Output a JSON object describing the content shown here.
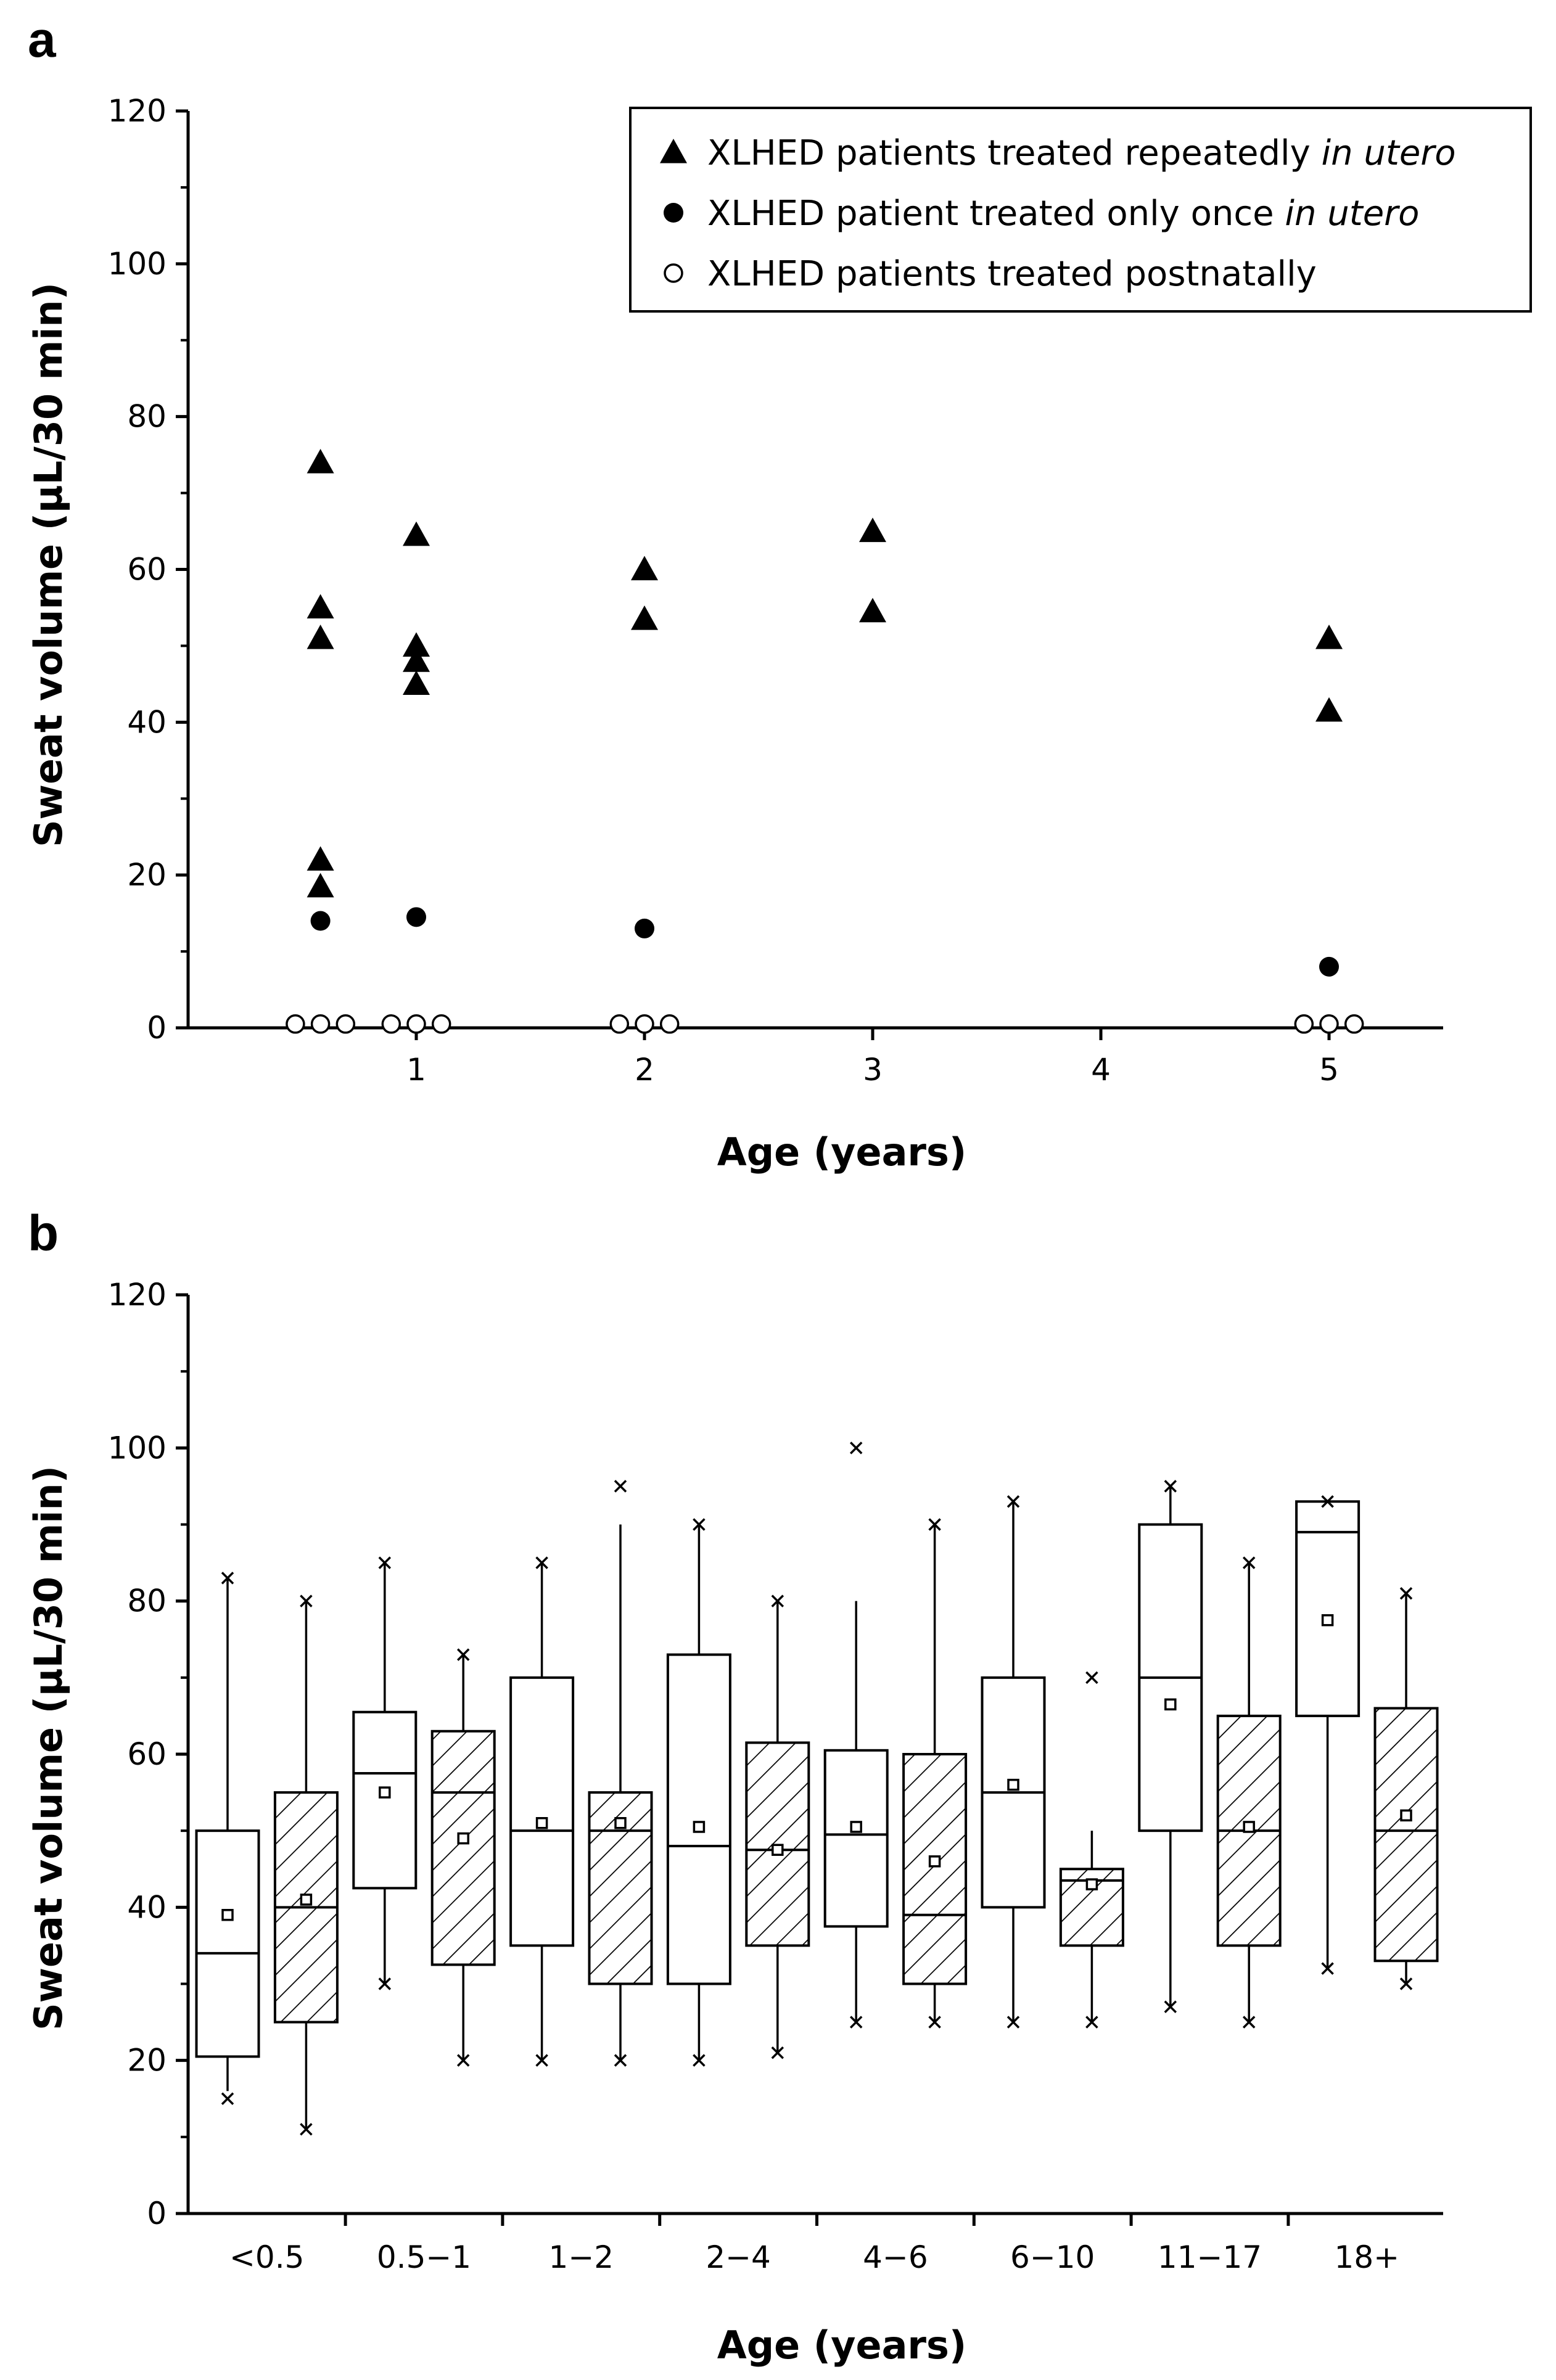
{
  "chart_data": [
    {
      "panel": "a",
      "type": "scatter",
      "xlabel": "Age (years)",
      "ylabel": "Sweat volume (µL/30 min)",
      "xlim": [
        0,
        5.5
      ],
      "ylim": [
        0,
        120
      ],
      "x_ticks": [
        "1",
        "2",
        "3",
        "4",
        "5"
      ],
      "y_ticks": [
        "0",
        "20",
        "40",
        "60",
        "80",
        "100",
        "120"
      ],
      "legend": {
        "position": "top-right",
        "entries": [
          {
            "marker": "triangle",
            "text": "XLHED patients treated repeatedly ",
            "italic": "in utero"
          },
          {
            "marker": "filled-circle",
            "text": "XLHED patient treated only once ",
            "italic": "in utero"
          },
          {
            "marker": "open-circle",
            "text": "XLHED patients treated postnatally",
            "italic": ""
          }
        ]
      },
      "series": [
        {
          "marker": "triangle",
          "points": [
            [
              0.58,
              74
            ],
            [
              0.58,
              55
            ],
            [
              0.58,
              51
            ],
            [
              0.58,
              22
            ],
            [
              0.58,
              18.5
            ],
            [
              1.0,
              64.5
            ],
            [
              1.0,
              50
            ],
            [
              1.0,
              48
            ],
            [
              1.0,
              45
            ],
            [
              2.0,
              60
            ],
            [
              2.0,
              53.5
            ],
            [
              3.0,
              65
            ],
            [
              3.0,
              54.5
            ],
            [
              5.0,
              51
            ],
            [
              5.0,
              41.5
            ]
          ]
        },
        {
          "marker": "filled-circle",
          "points": [
            [
              0.58,
              14
            ],
            [
              1.0,
              14.5
            ],
            [
              2.0,
              13
            ],
            [
              5.0,
              8
            ]
          ]
        },
        {
          "marker": "open-circle",
          "points": [
            [
              0.47,
              0.5
            ],
            [
              0.58,
              0.5
            ],
            [
              0.69,
              0.5
            ],
            [
              0.89,
              0.5
            ],
            [
              1.0,
              0.5
            ],
            [
              1.11,
              0.5
            ],
            [
              1.89,
              0.5
            ],
            [
              2.0,
              0.5
            ],
            [
              2.11,
              0.5
            ],
            [
              4.89,
              0.5
            ],
            [
              5.0,
              0.5
            ],
            [
              5.11,
              0.5
            ]
          ]
        }
      ]
    },
    {
      "panel": "b",
      "type": "box",
      "xlabel": "Age (years)",
      "ylabel": "Sweat volume (µL/30 min)",
      "ylim": [
        0,
        120
      ],
      "categories": [
        "<0.5",
        "0.5−1",
        "1−2",
        "2−4",
        "4−6",
        "6−10",
        "11−17",
        "18+"
      ],
      "y_ticks": [
        "0",
        "20",
        "40",
        "60",
        "80",
        "100",
        "120"
      ],
      "boxes": [
        {
          "category": "<0.5",
          "hatched": false,
          "q1": 20.5,
          "median": 34,
          "q3": 50,
          "whisker_low": 16,
          "whisker_high": 83,
          "mean": 39,
          "min": 15,
          "max": 83
        },
        {
          "category": "<0.5",
          "hatched": true,
          "q1": 25,
          "median": 40,
          "q3": 55,
          "whisker_low": 11,
          "whisker_high": 80,
          "mean": 41,
          "min": 11,
          "max": 80
        },
        {
          "category": "0.5−1",
          "hatched": false,
          "q1": 42.5,
          "median": 57.5,
          "q3": 65.5,
          "whisker_low": 30,
          "whisker_high": 85,
          "mean": 55,
          "min": 30,
          "max": 85
        },
        {
          "category": "0.5−1",
          "hatched": true,
          "q1": 32.5,
          "median": 55,
          "q3": 63,
          "whisker_low": 20,
          "whisker_high": 73,
          "mean": 49,
          "min": 20,
          "max": 73
        },
        {
          "category": "1−2",
          "hatched": false,
          "q1": 35,
          "median": 50,
          "q3": 70,
          "whisker_low": 20,
          "whisker_high": 85,
          "mean": 51,
          "min": 20,
          "max": 85
        },
        {
          "category": "1−2",
          "hatched": true,
          "q1": 30,
          "median": 50,
          "q3": 55,
          "whisker_low": 20,
          "whisker_high": 90,
          "mean": 51,
          "min": 20,
          "max": 95
        },
        {
          "category": "2−4",
          "hatched": false,
          "q1": 30,
          "median": 48,
          "q3": 73,
          "whisker_low": 20,
          "whisker_high": 90,
          "mean": 50.5,
          "min": 20,
          "max": 90
        },
        {
          "category": "2−4",
          "hatched": true,
          "q1": 35,
          "median": 47.5,
          "q3": 61.5,
          "whisker_low": 21,
          "whisker_high": 80,
          "mean": 47.5,
          "min": 21,
          "max": 80
        },
        {
          "category": "4−6",
          "hatched": false,
          "q1": 37.5,
          "median": 49.5,
          "q3": 60.5,
          "whisker_low": 25,
          "whisker_high": 80,
          "mean": 50.5,
          "min": 25,
          "max": 100
        },
        {
          "category": "4−6",
          "hatched": true,
          "q1": 30,
          "median": 39,
          "q3": 60,
          "whisker_low": 25,
          "whisker_high": 90,
          "mean": 46,
          "min": 25,
          "max": 90
        },
        {
          "category": "6−10",
          "hatched": false,
          "q1": 40,
          "median": 55,
          "q3": 70,
          "whisker_low": 25,
          "whisker_high": 93,
          "mean": 56,
          "min": 25,
          "max": 93
        },
        {
          "category": "6−10",
          "hatched": true,
          "q1": 35,
          "median": 43.5,
          "q3": 45,
          "whisker_low": 25,
          "whisker_high": 50,
          "mean": 43,
          "min": 25,
          "max": 70
        },
        {
          "category": "11−17",
          "hatched": false,
          "q1": 50,
          "median": 70,
          "q3": 90,
          "whisker_low": 27,
          "whisker_high": 95,
          "mean": 66.5,
          "min": 27,
          "max": 95
        },
        {
          "category": "11−17",
          "hatched": true,
          "q1": 35,
          "median": 50,
          "q3": 65,
          "whisker_low": 25,
          "whisker_high": 85,
          "mean": 50.5,
          "min": 25,
          "max": 85
        },
        {
          "category": "18+",
          "hatched": false,
          "q1": 65,
          "median": 89,
          "q3": 93,
          "whisker_low": 32,
          "whisker_high": 93,
          "mean": 77.5,
          "min": 32,
          "max": 93
        },
        {
          "category": "18+",
          "hatched": true,
          "q1": 33,
          "median": 50,
          "q3": 66,
          "whisker_low": 30,
          "whisker_high": 81,
          "mean": 52,
          "min": 30,
          "max": 81
        }
      ]
    }
  ]
}
